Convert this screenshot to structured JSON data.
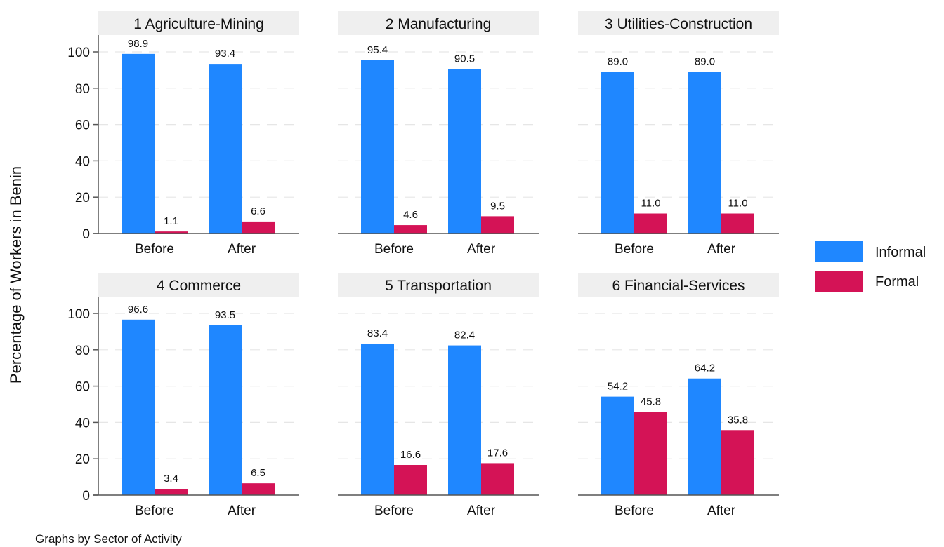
{
  "chart_data": {
    "type": "bar",
    "title": "",
    "ylabel": "Percentage of Workers in Benin",
    "xlabel": "",
    "note": "Graphs by Sector of Activity",
    "ylim": [
      0,
      108
    ],
    "yticks": [
      0,
      20,
      40,
      60,
      80,
      100
    ],
    "grid": true,
    "legend_position": "right",
    "categories": [
      "Before",
      "After"
    ],
    "series_names": [
      "Informal",
      "Formal"
    ],
    "colors": {
      "Informal": "#1f87ff",
      "Formal": "#d41356"
    },
    "panels": [
      {
        "title": "1 Agriculture-Mining",
        "series": [
          {
            "name": "Informal",
            "values": [
              98.9,
              93.4
            ]
          },
          {
            "name": "Formal",
            "values": [
              1.1,
              6.6
            ]
          }
        ]
      },
      {
        "title": "2 Manufacturing",
        "series": [
          {
            "name": "Informal",
            "values": [
              95.4,
              90.5
            ]
          },
          {
            "name": "Formal",
            "values": [
              4.6,
              9.5
            ]
          }
        ]
      },
      {
        "title": "3 Utilities-Construction",
        "series": [
          {
            "name": "Informal",
            "values": [
              89.0,
              89.0
            ]
          },
          {
            "name": "Formal",
            "values": [
              11.0,
              11.0
            ]
          }
        ]
      },
      {
        "title": "4 Commerce",
        "series": [
          {
            "name": "Informal",
            "values": [
              96.6,
              93.5
            ]
          },
          {
            "name": "Formal",
            "values": [
              3.4,
              6.5
            ]
          }
        ]
      },
      {
        "title": "5 Transportation",
        "series": [
          {
            "name": "Informal",
            "values": [
              83.4,
              82.4
            ]
          },
          {
            "name": "Formal",
            "values": [
              16.6,
              17.6
            ]
          }
        ]
      },
      {
        "title": "6 Financial-Services",
        "series": [
          {
            "name": "Informal",
            "values": [
              54.2,
              64.2
            ]
          },
          {
            "name": "Formal",
            "values": [
              45.8,
              35.8
            ]
          }
        ]
      }
    ],
    "legend": [
      {
        "label": "Informal",
        "color": "#1f87ff"
      },
      {
        "label": "Formal",
        "color": "#d41356"
      }
    ]
  }
}
